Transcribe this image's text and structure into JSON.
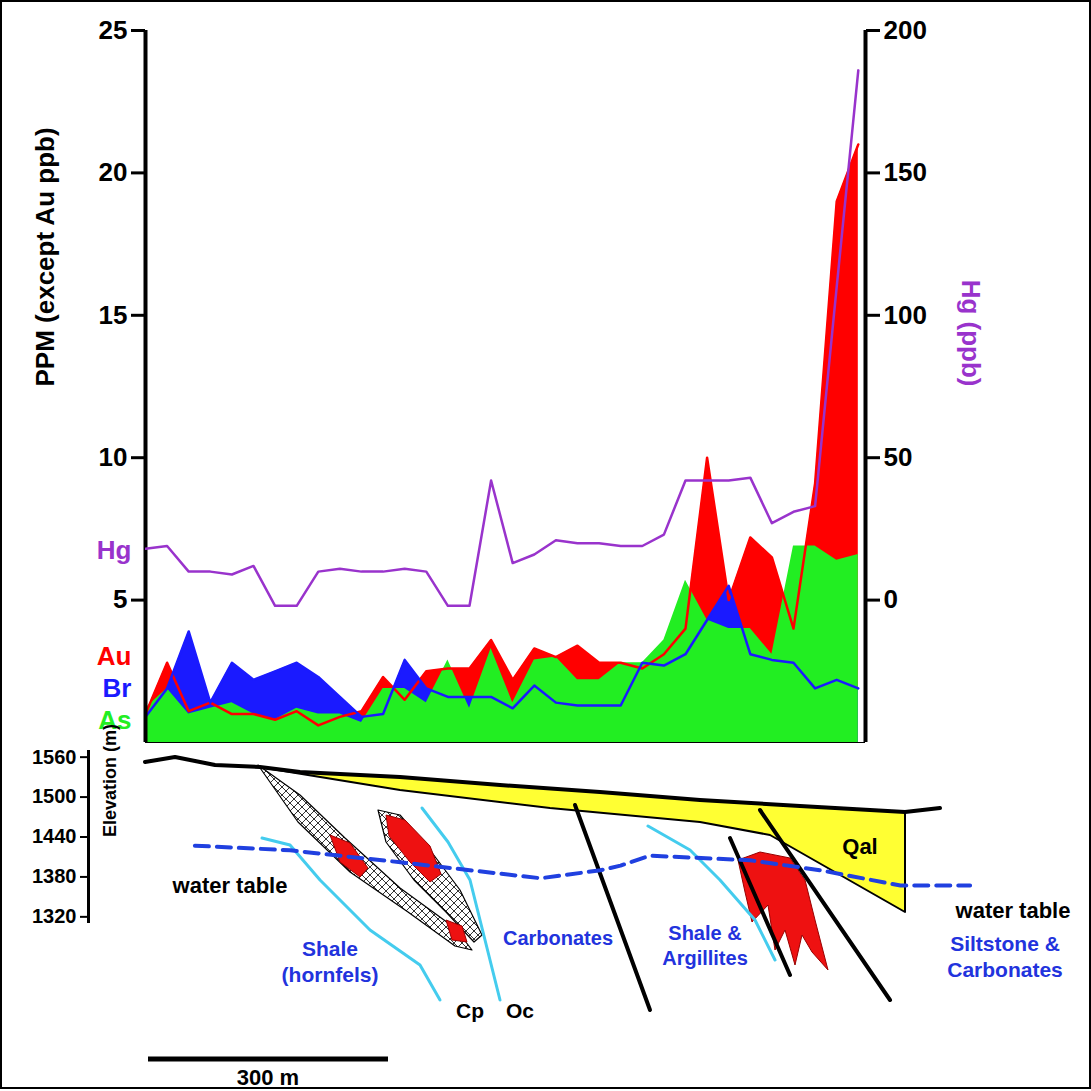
{
  "chart_data": [
    {
      "type": "area",
      "y_label": "PPM (except Au ppb)",
      "y2_label": "Hg (ppb)",
      "x": [
        0,
        27,
        54,
        81,
        108,
        135,
        162,
        189,
        216,
        243,
        270,
        297,
        324,
        351,
        378,
        405,
        432,
        459,
        486,
        513,
        540,
        567,
        594,
        621,
        648,
        675,
        702,
        729,
        756,
        783,
        810,
        837,
        864,
        891
      ],
      "xlim": [
        0,
        900
      ],
      "ylim": [
        0,
        25
      ],
      "yticks": [
        5,
        10,
        15,
        20,
        25
      ],
      "y2lim": [
        -50,
        200
      ],
      "y2ticks": [
        0,
        50,
        100,
        150,
        200
      ],
      "tick_labels": "y",
      "legend": "left",
      "series": [
        {
          "name": "Au",
          "type": "area",
          "color": "#ff0000",
          "values": [
            1.0,
            2.8,
            1.1,
            1.4,
            1.0,
            1.0,
            0.8,
            1.1,
            0.6,
            0.9,
            1.1,
            2.3,
            1.5,
            2.5,
            2.6,
            2.6,
            3.6,
            2.2,
            3.3,
            3.0,
            3.4,
            2.8,
            2.8,
            2.6,
            3.1,
            4.0,
            10.0,
            5.0,
            7.2,
            6.5,
            4.0,
            9.1,
            19.0,
            21.0
          ]
        },
        {
          "name": "Br",
          "type": "area",
          "color": "#1a1aff",
          "values": [
            0.9,
            1.9,
            3.9,
            1.4,
            2.8,
            2.2,
            2.5,
            2.8,
            2.3,
            1.6,
            0.9,
            1.0,
            2.9,
            1.9,
            1.6,
            1.6,
            1.6,
            1.2,
            2.0,
            1.4,
            1.3,
            1.3,
            1.3,
            2.8,
            2.7,
            3.1,
            4.3,
            5.5,
            3.1,
            2.9,
            2.8,
            1.9,
            2.2,
            1.9
          ]
        },
        {
          "name": "As",
          "type": "area",
          "color": "#22ee22",
          "values": [
            1.2,
            1.9,
            1.0,
            1.2,
            1.4,
            1.0,
            0.8,
            1.2,
            1.0,
            1.0,
            0.7,
            1.9,
            1.9,
            1.4,
            2.9,
            1.2,
            3.3,
            1.4,
            2.9,
            3.0,
            2.2,
            2.2,
            2.8,
            2.8,
            3.6,
            5.7,
            4.3,
            4.0,
            4.0,
            3.1,
            6.9,
            6.9,
            6.4,
            6.6
          ]
        },
        {
          "name": "Hg",
          "type": "line",
          "axis": "y2",
          "color": "#9933cc",
          "values": [
            18,
            19,
            10,
            10,
            9,
            12,
            -2,
            -2,
            10,
            11,
            10,
            10,
            11,
            10,
            -2,
            -2,
            42,
            13,
            16,
            21,
            20,
            20,
            19,
            19,
            23,
            42,
            42,
            42,
            43,
            27,
            31,
            33,
            110,
            186
          ]
        }
      ]
    },
    {
      "type": "line",
      "y_label": "Elevation (m)",
      "xlim": [
        0,
        1110
      ],
      "ylim": [
        1310,
        1570
      ],
      "yticks": [
        1320,
        1380,
        1440,
        1500,
        1560
      ],
      "tick_labels": "y",
      "series": [
        {
          "name": "water table",
          "color": "#2040e0",
          "line_style": "dashed",
          "x": [
            133,
            252,
            390,
            565,
            640,
            665,
            702,
            827,
            915,
            1015,
            1102
          ],
          "values": [
            1427,
            1420,
            1402,
            1378,
            1390,
            1397,
            1412,
            1405,
            1390,
            1367,
            1367
          ]
        }
      ],
      "annotations": [
        "Qal",
        "Shale (hornfels)",
        "Carbonates",
        "Shale & Argillites",
        "Siltstone & Carbonates",
        "Cp",
        "Oc"
      ],
      "scale_bar": {
        "label": "300 m",
        "length": 300
      }
    }
  ]
}
